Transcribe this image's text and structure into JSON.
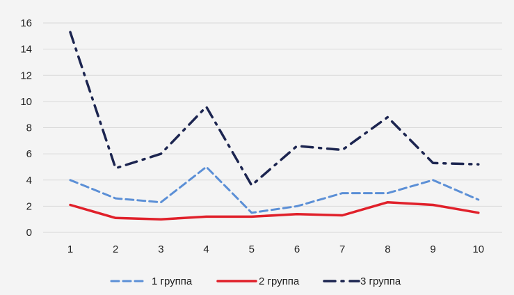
{
  "chart_data": {
    "type": "line",
    "x": [
      "1",
      "2",
      "3",
      "4",
      "5",
      "6",
      "7",
      "8",
      "9",
      "10"
    ],
    "yticks": [
      "0",
      "2",
      "4",
      "6",
      "8",
      "10",
      "12",
      "14",
      "16"
    ],
    "ylim": [
      0,
      16
    ],
    "grid": "horizontal",
    "legend_position": "bottom",
    "series": [
      {
        "name": "1 группа",
        "values": [
          4.0,
          2.6,
          2.3,
          5.0,
          1.5,
          2.0,
          3.0,
          3.0,
          4.0,
          2.5
        ],
        "color": "#5b8fd6",
        "style": "dashed"
      },
      {
        "name": "2 группа",
        "values": [
          2.1,
          1.1,
          1.0,
          1.2,
          1.2,
          1.4,
          1.3,
          2.3,
          2.1,
          1.5
        ],
        "color": "#e0202a",
        "style": "solid"
      },
      {
        "name": "3 группа",
        "values": [
          15.3,
          4.9,
          6.0,
          9.6,
          3.6,
          6.6,
          6.3,
          8.8,
          5.3,
          5.2
        ],
        "color": "#1c2550",
        "style": "dash-dot"
      }
    ]
  }
}
